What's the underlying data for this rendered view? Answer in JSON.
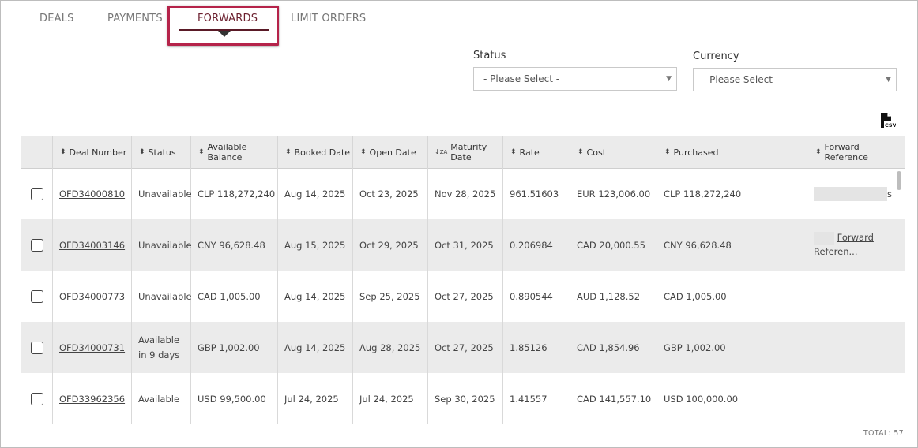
{
  "tabs": [
    {
      "label": "DEALS",
      "active": false
    },
    {
      "label": "PAYMENTS",
      "active": false
    },
    {
      "label": "FORWARDS",
      "active": true
    },
    {
      "label": "LIMIT ORDERS",
      "active": false
    }
  ],
  "filters": {
    "status": {
      "label": "Status",
      "value": "- Please Select -"
    },
    "currency": {
      "label": "Currency",
      "value": "- Please Select -"
    }
  },
  "csv": {
    "icon": "csv-file-icon",
    "text": "CSV"
  },
  "columns": [
    {
      "label": "Deal Number",
      "sort": "both"
    },
    {
      "label": "Status",
      "sort": "both"
    },
    {
      "label": "Available Balance",
      "sort": "both"
    },
    {
      "label": "Booked Date",
      "sort": "both"
    },
    {
      "label": "Open Date",
      "sort": "both"
    },
    {
      "label": "Maturity Date",
      "sort": "desc-za"
    },
    {
      "label": "Rate",
      "sort": "both"
    },
    {
      "label": "Cost",
      "sort": "both"
    },
    {
      "label": "Purchased",
      "sort": "both"
    },
    {
      "label": "Forward Reference",
      "sort": "both"
    }
  ],
  "rows": [
    {
      "deal": "OFD34000810",
      "status": "Unavailable",
      "balance": "CLP 118,272,240",
      "booked": "Aug 14, 2025",
      "open": "Oct 23, 2025",
      "maturity": "Nov 28, 2025",
      "rate": "961.51603",
      "cost": "EUR 123,006.00",
      "purchased": "CLP 118,272,240",
      "ref_tail": "s",
      "ref_link": "",
      "ref_link2": ""
    },
    {
      "deal": "OFD34003146",
      "status": "Unavailable",
      "balance": "CNY 96,628.48",
      "booked": "Aug 15, 2025",
      "open": "Oct 29, 2025",
      "maturity": "Oct 31, 2025",
      "rate": "0.206984",
      "cost": "CAD 20,000.55",
      "purchased": "CNY 96,628.48",
      "ref_tail": "",
      "ref_link": "Forward",
      "ref_link2": "Referen..."
    },
    {
      "deal": "OFD34000773",
      "status": "Unavailable",
      "balance": "CAD 1,005.00",
      "booked": "Aug 14, 2025",
      "open": "Sep 25, 2025",
      "maturity": "Oct 27, 2025",
      "rate": "0.890544",
      "cost": "AUD 1,128.52",
      "purchased": "CAD 1,005.00",
      "ref_tail": "",
      "ref_link": "",
      "ref_link2": ""
    },
    {
      "deal": "OFD34000731",
      "status": "Available in 9 days",
      "balance": "GBP 1,002.00",
      "booked": "Aug 14, 2025",
      "open": "Aug 28, 2025",
      "maturity": "Oct 27, 2025",
      "rate": "1.85126",
      "cost": "CAD 1,854.96",
      "purchased": "GBP 1,002.00",
      "ref_tail": "",
      "ref_link": "",
      "ref_link2": ""
    },
    {
      "deal": "OFD33962356",
      "status": "Available",
      "balance": "USD 99,500.00",
      "booked": "Jul 24, 2025",
      "open": "Jul 24, 2025",
      "maturity": "Sep 30, 2025",
      "rate": "1.41557",
      "cost": "CAD 141,557.10",
      "purchased": "USD 100,000.00",
      "ref_tail": "",
      "ref_link": "",
      "ref_link2": ""
    }
  ],
  "total": "TOTAL: 57",
  "colors": {
    "accent": "#5a1a27",
    "highlight": "#b5234a",
    "alt_row": "#ebebeb"
  }
}
